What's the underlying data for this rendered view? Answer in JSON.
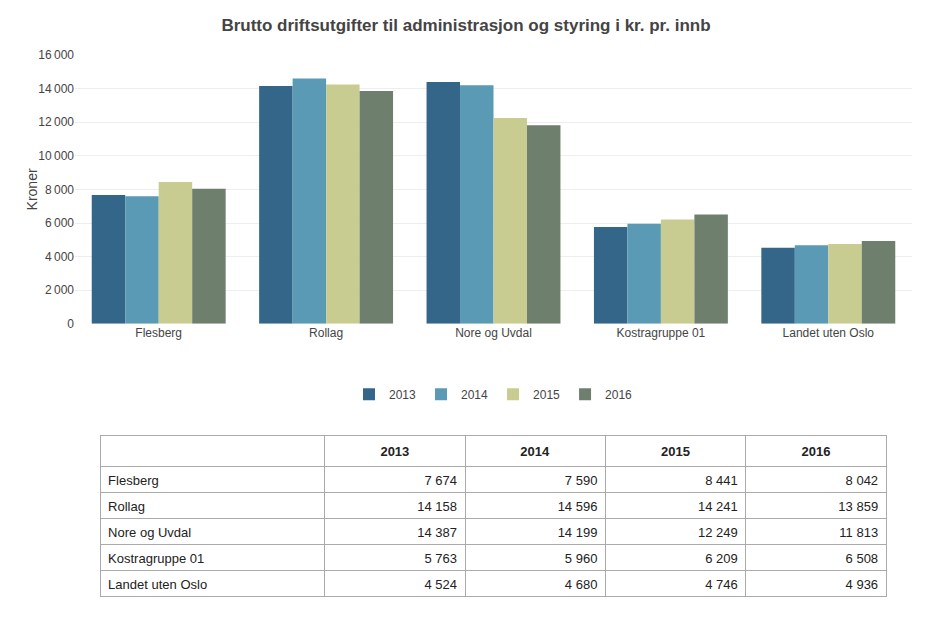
{
  "chart_data": [
    {
      "type": "bar",
      "title": "Brutto driftsutgifter til administrasjon og styring i kr. pr. innb",
      "categories": [
        "Flesberg",
        "Rollag",
        "Nore og Uvdal",
        "Kostragruppe 01",
        "Landet uten Oslo"
      ],
      "series": [
        {
          "name": "2013",
          "color": "#336688",
          "values": [
            7674,
            14158,
            14387,
            5763,
            4524
          ]
        },
        {
          "name": "2014",
          "color": "#5b9ab5",
          "values": [
            7590,
            14596,
            14199,
            5960,
            4680
          ]
        },
        {
          "name": "2015",
          "color": "#c8cc90",
          "values": [
            8441,
            14241,
            12249,
            6209,
            4746
          ]
        },
        {
          "name": "2016",
          "color": "#6e7f6e",
          "values": [
            8042,
            13859,
            11813,
            6508,
            4936
          ]
        }
      ],
      "ylabel": "Kroner",
      "ylim": [
        0,
        16000
      ],
      "yticks": [
        0,
        {
          "value": 2000,
          "label": "2 000"
        },
        {
          "value": 4000,
          "label": "4 000"
        },
        {
          "value": 6000,
          "label": "6 000"
        },
        {
          "value": 8000,
          "label": "8 000"
        },
        {
          "value": 10000,
          "label": "10 000"
        },
        {
          "value": 12000,
          "label": "12 000"
        },
        {
          "value": 14000,
          "label": "14 000"
        },
        {
          "value": 16000,
          "label": "16 000"
        }
      ],
      "grid": true,
      "legend": "bottom"
    },
    {
      "type": "table",
      "categories": [
        "Flesberg",
        "Rollag",
        "Nore og Uvdal",
        "Kostragruppe 01",
        "Landet uten Oslo"
      ],
      "series": [
        {
          "name": "2013",
          "values": [
            7674,
            14158,
            14387,
            5763,
            4524
          ],
          "value_labels": [
            "7 674",
            "14 158",
            "14 387",
            "5 763",
            "4 524"
          ]
        },
        {
          "name": "2014",
          "values": [
            7590,
            14596,
            14199,
            5960,
            4680
          ],
          "value_labels": [
            "7 590",
            "14 596",
            "14 199",
            "5 960",
            "4 680"
          ]
        },
        {
          "name": "2015",
          "values": [
            8441,
            14241,
            12249,
            6209,
            4746
          ],
          "value_labels": [
            "8 441",
            "14 241",
            "12 249",
            "6 209",
            "4 746"
          ]
        },
        {
          "name": "2016",
          "values": [
            8042,
            13859,
            11813,
            6508,
            4936
          ],
          "value_labels": [
            "8 042",
            "13 859",
            "11 813",
            "6 508",
            "4 936"
          ]
        }
      ]
    }
  ]
}
